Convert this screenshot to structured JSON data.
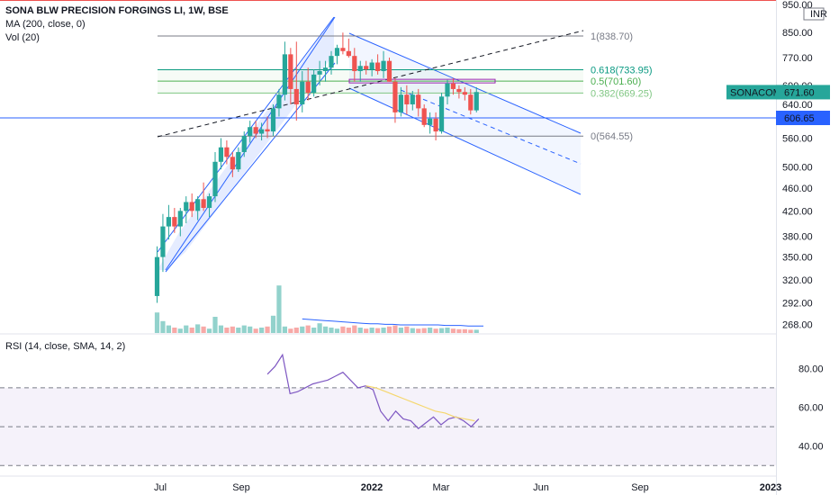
{
  "legend": {
    "title": "SONA BLW PRECISION FORGINGS LI, 1W, BSE",
    "ma": "MA (200, close, 0)",
    "vol": "Vol (20)",
    "rsi": "RSI (14, close, SMA, 14, 2)"
  },
  "currency": "INR",
  "colors": {
    "up": "#26a69a",
    "down": "#ef5350",
    "channel": "#2962ff",
    "rsi": "#7e57c2",
    "rsi_ma": "#f5d76e"
  },
  "chart_data": [
    {
      "type": "candlestick",
      "title": "SONA BLW PRECISION FORGINGS LI, 1W, BSE",
      "x_ticks": [
        "Jul",
        "Sep",
        "2022",
        "Mar",
        "Jun",
        "Sep",
        "2023"
      ],
      "y_ticks": [
        "950.00",
        "850.00",
        "770.00",
        "690.00",
        "640.00",
        "560.00",
        "500.00",
        "460.00",
        "420.00",
        "380.00",
        "350.00",
        "320.00",
        "292.00",
        "268.00"
      ],
      "scale": "log",
      "ylim": [
        262,
        960
      ],
      "candles": [
        {
          "o": 300,
          "h": 365,
          "l": 292,
          "c": 350
        },
        {
          "o": 350,
          "h": 415,
          "l": 330,
          "c": 395
        },
        {
          "o": 395,
          "h": 430,
          "l": 375,
          "c": 410
        },
        {
          "o": 410,
          "h": 425,
          "l": 385,
          "c": 395
        },
        {
          "o": 395,
          "h": 425,
          "l": 380,
          "c": 420
        },
        {
          "o": 420,
          "h": 445,
          "l": 400,
          "c": 435
        },
        {
          "o": 435,
          "h": 450,
          "l": 410,
          "c": 420
        },
        {
          "o": 420,
          "h": 445,
          "l": 405,
          "c": 440
        },
        {
          "o": 440,
          "h": 470,
          "l": 420,
          "c": 425
        },
        {
          "o": 425,
          "h": 450,
          "l": 410,
          "c": 445
        },
        {
          "o": 445,
          "h": 530,
          "l": 435,
          "c": 510
        },
        {
          "o": 510,
          "h": 560,
          "l": 495,
          "c": 540
        },
        {
          "o": 540,
          "h": 555,
          "l": 505,
          "c": 520
        },
        {
          "o": 520,
          "h": 530,
          "l": 480,
          "c": 495
        },
        {
          "o": 495,
          "h": 540,
          "l": 490,
          "c": 530
        },
        {
          "o": 530,
          "h": 575,
          "l": 520,
          "c": 565
        },
        {
          "o": 565,
          "h": 600,
          "l": 550,
          "c": 585
        },
        {
          "o": 585,
          "h": 600,
          "l": 560,
          "c": 570
        },
        {
          "o": 570,
          "h": 595,
          "l": 555,
          "c": 580
        },
        {
          "o": 580,
          "h": 610,
          "l": 560,
          "c": 575
        },
        {
          "o": 575,
          "h": 640,
          "l": 565,
          "c": 630
        },
        {
          "o": 630,
          "h": 680,
          "l": 610,
          "c": 665
        },
        {
          "o": 665,
          "h": 820,
          "l": 650,
          "c": 780
        },
        {
          "o": 780,
          "h": 800,
          "l": 640,
          "c": 680
        },
        {
          "o": 680,
          "h": 820,
          "l": 600,
          "c": 640
        },
        {
          "o": 640,
          "h": 730,
          "l": 620,
          "c": 700
        },
        {
          "o": 700,
          "h": 740,
          "l": 650,
          "c": 670
        },
        {
          "o": 670,
          "h": 735,
          "l": 660,
          "c": 720
        },
        {
          "o": 720,
          "h": 760,
          "l": 690,
          "c": 730
        },
        {
          "o": 730,
          "h": 760,
          "l": 700,
          "c": 740
        },
        {
          "o": 740,
          "h": 790,
          "l": 720,
          "c": 775
        },
        {
          "o": 775,
          "h": 810,
          "l": 750,
          "c": 800
        },
        {
          "o": 800,
          "h": 850,
          "l": 780,
          "c": 790
        },
        {
          "o": 790,
          "h": 830,
          "l": 770,
          "c": 775
        },
        {
          "o": 775,
          "h": 800,
          "l": 700,
          "c": 730
        },
        {
          "o": 730,
          "h": 760,
          "l": 700,
          "c": 745
        },
        {
          "o": 745,
          "h": 760,
          "l": 720,
          "c": 735
        },
        {
          "o": 735,
          "h": 765,
          "l": 715,
          "c": 755
        },
        {
          "o": 755,
          "h": 780,
          "l": 720,
          "c": 730
        },
        {
          "o": 730,
          "h": 790,
          "l": 710,
          "c": 760
        },
        {
          "o": 760,
          "h": 770,
          "l": 700,
          "c": 700
        },
        {
          "o": 700,
          "h": 710,
          "l": 595,
          "c": 620
        },
        {
          "o": 620,
          "h": 685,
          "l": 610,
          "c": 665
        },
        {
          "o": 665,
          "h": 690,
          "l": 615,
          "c": 640
        },
        {
          "o": 640,
          "h": 675,
          "l": 625,
          "c": 665
        },
        {
          "o": 665,
          "h": 680,
          "l": 610,
          "c": 630
        },
        {
          "o": 630,
          "h": 640,
          "l": 585,
          "c": 590
        },
        {
          "o": 590,
          "h": 620,
          "l": 570,
          "c": 605
        },
        {
          "o": 605,
          "h": 620,
          "l": 555,
          "c": 575
        },
        {
          "o": 575,
          "h": 670,
          "l": 570,
          "c": 660
        },
        {
          "o": 660,
          "h": 705,
          "l": 640,
          "c": 695
        },
        {
          "o": 695,
          "h": 710,
          "l": 665,
          "c": 680
        },
        {
          "o": 680,
          "h": 690,
          "l": 655,
          "c": 672
        },
        {
          "o": 672,
          "h": 685,
          "l": 650,
          "c": 665
        },
        {
          "o": 665,
          "h": 680,
          "l": 615,
          "c": 625
        },
        {
          "o": 625,
          "h": 685,
          "l": 620,
          "c": 672
        }
      ],
      "volume": [
        38,
        22,
        14,
        10,
        8,
        14,
        10,
        16,
        12,
        8,
        30,
        14,
        10,
        12,
        10,
        14,
        12,
        8,
        10,
        12,
        32,
        88,
        12,
        8,
        10,
        12,
        14,
        10,
        18,
        12,
        10,
        8,
        12,
        10,
        14,
        10,
        8,
        10,
        9,
        10,
        12,
        14,
        10,
        12,
        9,
        8,
        9,
        10,
        8,
        9,
        10,
        8,
        7,
        7,
        6,
        6
      ],
      "volume_ma": [
        26,
        25,
        24,
        23,
        22,
        21,
        20,
        19,
        18,
        17,
        17,
        16,
        16,
        15,
        15,
        15,
        15,
        15,
        15,
        14,
        14,
        14,
        13,
        13,
        13
      ],
      "levels": [
        {
          "label": "1(838.70)",
          "value": 838.7,
          "color": "#787b86"
        },
        {
          "label": "0.618(733.95)",
          "value": 733.95,
          "color": "#089981"
        },
        {
          "label": "0.5(701.60)",
          "value": 701.6,
          "color": "#4caf50"
        },
        {
          "label": "0.382(669.25)",
          "value": 669.25,
          "color": "#81c784"
        },
        {
          "label": "0(564.55)",
          "value": 564.55,
          "color": "#787b86"
        }
      ],
      "horizontal_line": {
        "value": 606.65,
        "label": "606.65"
      },
      "last_price": {
        "symbol": "SONACOMS",
        "value": "671.60"
      }
    },
    {
      "type": "line",
      "title": "RSI (14, close, SMA, 14, 2)",
      "y_ticks": [
        "80.00",
        "60.00",
        "40.00"
      ],
      "ylim": [
        25,
        95
      ],
      "bands": [
        70,
        50,
        30
      ],
      "rsi": [
        77,
        81,
        87,
        67,
        68,
        70,
        72,
        73,
        74,
        76,
        78,
        74,
        70,
        71,
        69,
        58,
        53,
        58,
        54,
        53,
        49,
        52,
        55,
        51,
        54,
        55,
        53,
        50,
        54
      ],
      "rsi_ma": [
        71,
        70,
        68,
        66,
        64,
        62,
        60,
        58,
        57,
        55,
        54,
        53
      ]
    }
  ]
}
